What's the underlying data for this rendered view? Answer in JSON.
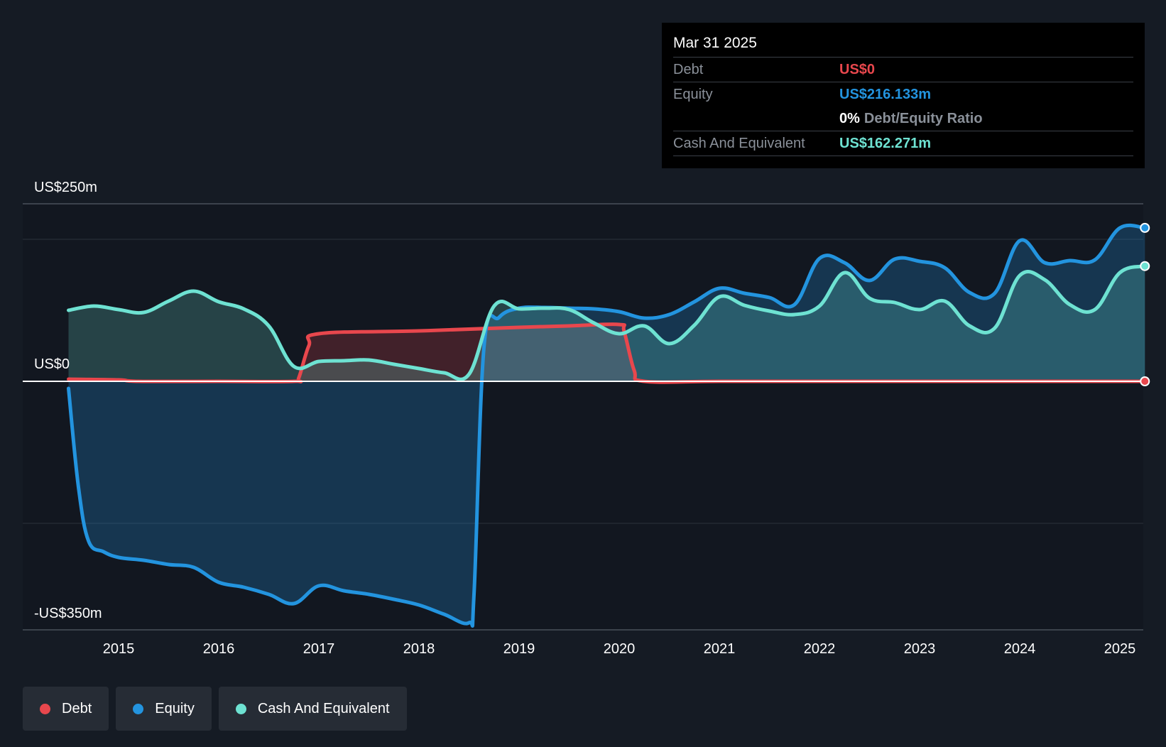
{
  "tooltip": {
    "date": "Mar 31 2025",
    "debt_label": "Debt",
    "debt_value": "US$0",
    "equity_label": "Equity",
    "equity_value": "US$216.133m",
    "ratio_pct": "0%",
    "ratio_text": "Debt/Equity Ratio",
    "cash_label": "Cash And Equivalent",
    "cash_value": "US$162.271m"
  },
  "legend": {
    "debt": "Debt",
    "equity": "Equity",
    "cash": "Cash And Equivalent"
  },
  "colors": {
    "debt": "#e8474d",
    "equity": "#2394df",
    "cash": "#6ee2d2",
    "background": "#151b24"
  },
  "chart_data": {
    "type": "line",
    "title": "",
    "ylim": [
      -350,
      250
    ],
    "y_tick_labels": [
      {
        "value": 250,
        "label": "US$250m"
      },
      {
        "value": 0,
        "label": "US$0"
      },
      {
        "value": -350,
        "label": "-US$350m"
      }
    ],
    "gridlines": [
      250,
      200,
      0,
      -200,
      -350
    ],
    "x_ticks": [
      2015,
      2016,
      2017,
      2018,
      2019,
      2020,
      2021,
      2022,
      2023,
      2024,
      2025
    ],
    "series": [
      {
        "name": "Debt",
        "color": "#e8474d",
        "points": [
          [
            2014.5,
            3
          ],
          [
            2015.0,
            2
          ],
          [
            2015.2,
            0
          ],
          [
            2016.0,
            0
          ],
          [
            2016.75,
            0
          ],
          [
            2016.8,
            5
          ],
          [
            2016.9,
            50
          ],
          [
            2017.0,
            67
          ],
          [
            2018.0,
            71
          ],
          [
            2019.0,
            76
          ],
          [
            2019.5,
            78
          ],
          [
            2020.0,
            80
          ],
          [
            2020.05,
            70
          ],
          [
            2020.15,
            15
          ],
          [
            2020.25,
            0
          ],
          [
            2021.0,
            0
          ],
          [
            2022.0,
            0
          ],
          [
            2023.0,
            0
          ],
          [
            2024.0,
            0
          ],
          [
            2025.0,
            0
          ],
          [
            2025.25,
            0
          ]
        ]
      },
      {
        "name": "Equity",
        "color": "#2394df",
        "points": [
          [
            2014.5,
            -10
          ],
          [
            2014.6,
            -150
          ],
          [
            2014.7,
            -225
          ],
          [
            2014.85,
            -240
          ],
          [
            2015.0,
            -248
          ],
          [
            2015.25,
            -252
          ],
          [
            2015.5,
            -258
          ],
          [
            2015.75,
            -262
          ],
          [
            2016.0,
            -283
          ],
          [
            2016.25,
            -290
          ],
          [
            2016.5,
            -300
          ],
          [
            2016.75,
            -313
          ],
          [
            2017.0,
            -288
          ],
          [
            2017.25,
            -295
          ],
          [
            2017.5,
            -300
          ],
          [
            2017.75,
            -307
          ],
          [
            2018.0,
            -315
          ],
          [
            2018.25,
            -328
          ],
          [
            2018.5,
            -340
          ],
          [
            2018.55,
            -300
          ],
          [
            2018.65,
            50
          ],
          [
            2018.8,
            90
          ],
          [
            2019.0,
            103
          ],
          [
            2019.25,
            104
          ],
          [
            2019.5,
            103
          ],
          [
            2019.75,
            102
          ],
          [
            2020.0,
            98
          ],
          [
            2020.25,
            89
          ],
          [
            2020.5,
            94
          ],
          [
            2020.75,
            112
          ],
          [
            2021.0,
            131
          ],
          [
            2021.25,
            124
          ],
          [
            2021.5,
            118
          ],
          [
            2021.75,
            108
          ],
          [
            2022.0,
            173
          ],
          [
            2022.25,
            167
          ],
          [
            2022.5,
            142
          ],
          [
            2022.75,
            172
          ],
          [
            2023.0,
            169
          ],
          [
            2023.25,
            160
          ],
          [
            2023.5,
            125
          ],
          [
            2023.75,
            124
          ],
          [
            2024.0,
            198
          ],
          [
            2024.25,
            167
          ],
          [
            2024.5,
            170
          ],
          [
            2024.75,
            171
          ],
          [
            2025.0,
            216
          ],
          [
            2025.25,
            216.133
          ]
        ]
      },
      {
        "name": "Cash And Equivalent",
        "color": "#6ee2d2",
        "points": [
          [
            2014.5,
            100
          ],
          [
            2014.75,
            106
          ],
          [
            2015.0,
            101
          ],
          [
            2015.25,
            97
          ],
          [
            2015.5,
            113
          ],
          [
            2015.75,
            127
          ],
          [
            2016.0,
            112
          ],
          [
            2016.25,
            102
          ],
          [
            2016.5,
            78
          ],
          [
            2016.75,
            21
          ],
          [
            2017.0,
            28
          ],
          [
            2017.25,
            29
          ],
          [
            2017.5,
            30
          ],
          [
            2017.75,
            24
          ],
          [
            2018.0,
            18
          ],
          [
            2018.25,
            12
          ],
          [
            2018.5,
            10
          ],
          [
            2018.75,
            106
          ],
          [
            2019.0,
            102
          ],
          [
            2019.25,
            103
          ],
          [
            2019.5,
            101
          ],
          [
            2019.75,
            82
          ],
          [
            2020.0,
            67
          ],
          [
            2020.25,
            78
          ],
          [
            2020.5,
            53
          ],
          [
            2020.75,
            79
          ],
          [
            2021.0,
            119
          ],
          [
            2021.25,
            107
          ],
          [
            2021.5,
            99
          ],
          [
            2021.75,
            94
          ],
          [
            2022.0,
            106
          ],
          [
            2022.25,
            153
          ],
          [
            2022.5,
            117
          ],
          [
            2022.75,
            111
          ],
          [
            2023.0,
            101
          ],
          [
            2023.25,
            113
          ],
          [
            2023.5,
            78
          ],
          [
            2023.75,
            75
          ],
          [
            2024.0,
            149
          ],
          [
            2024.25,
            143
          ],
          [
            2024.5,
            108
          ],
          [
            2024.75,
            101
          ],
          [
            2025.0,
            153
          ],
          [
            2025.25,
            162.271
          ]
        ]
      }
    ]
  }
}
